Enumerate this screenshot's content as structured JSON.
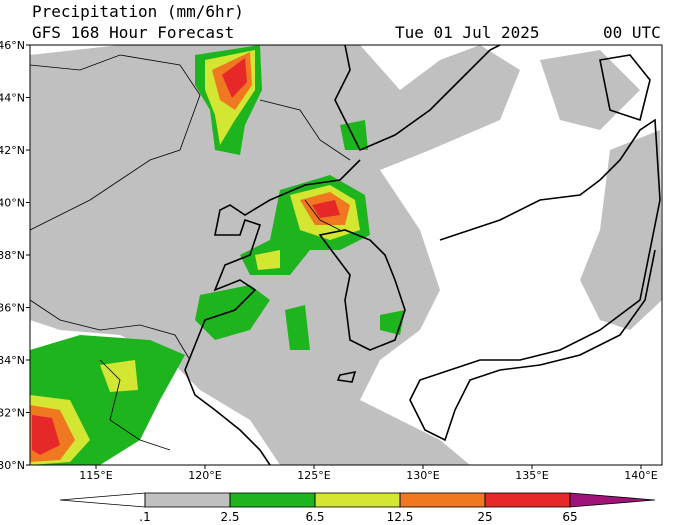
{
  "header": {
    "title_line1": "Precipitation (mm/6hr)",
    "title_line2": "GFS 168 Hour Forecast",
    "date": "Tue 01 Jul 2025",
    "time": "00 UTC"
  },
  "map": {
    "lat_labels": [
      "46°N",
      "44°N",
      "42°N",
      "40°N",
      "38°N",
      "36°N",
      "34°N",
      "32°N",
      "30°N"
    ],
    "lon_labels": [
      "115°E",
      "120°E",
      "125°E",
      "130°E",
      "135°E",
      "140°E"
    ]
  },
  "colorbar": {
    "levels": [
      {
        "value": 0.1,
        "label": ".1"
      },
      2.5,
      6.5,
      12.5,
      25,
      65
    ],
    "colors": [
      "#ffffff",
      "#c0c0c0",
      "#1eb41e",
      "#d2e632",
      "#f07820",
      "#e62828",
      "#a0147a"
    ]
  }
}
